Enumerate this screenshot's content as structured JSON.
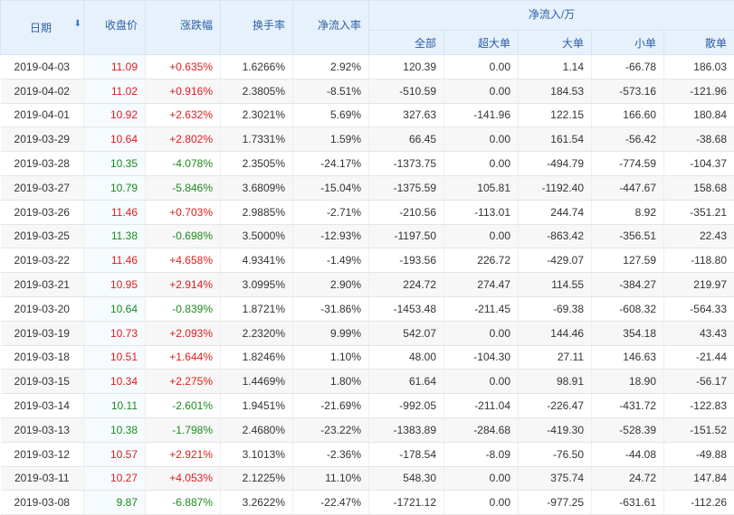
{
  "header": {
    "date": "日期",
    "close": "收盘价",
    "change": "涨跌幅",
    "turnover": "换手率",
    "net_rate": "净流入率",
    "net_group": "净流入/万",
    "all": "全部",
    "super_large": "超大单",
    "large": "大单",
    "small": "小单",
    "retail": "散单"
  },
  "colors": {
    "up": "#e21b1b",
    "down": "#1c8a1c",
    "header_bg": "#e6f1fb",
    "header_text": "#2d5fa6"
  },
  "rows": [
    {
      "date": "2019-04-03",
      "close": "11.09",
      "change": "+0.635%",
      "turnover": "1.6266%",
      "net_rate": "2.92%",
      "all": "120.39",
      "super": "0.00",
      "large": "1.14",
      "small": "-66.78",
      "retail": "186.03",
      "dir": "up"
    },
    {
      "date": "2019-04-02",
      "close": "11.02",
      "change": "+0.916%",
      "turnover": "2.3805%",
      "net_rate": "-8.51%",
      "all": "-510.59",
      "super": "0.00",
      "large": "184.53",
      "small": "-573.16",
      "retail": "-121.96",
      "dir": "up"
    },
    {
      "date": "2019-04-01",
      "close": "10.92",
      "change": "+2.632%",
      "turnover": "2.3021%",
      "net_rate": "5.69%",
      "all": "327.63",
      "super": "-141.96",
      "large": "122.15",
      "small": "166.60",
      "retail": "180.84",
      "dir": "up"
    },
    {
      "date": "2019-03-29",
      "close": "10.64",
      "change": "+2.802%",
      "turnover": "1.7331%",
      "net_rate": "1.59%",
      "all": "66.45",
      "super": "0.00",
      "large": "161.54",
      "small": "-56.42",
      "retail": "-38.68",
      "dir": "up"
    },
    {
      "date": "2019-03-28",
      "close": "10.35",
      "change": "-4.078%",
      "turnover": "2.3505%",
      "net_rate": "-24.17%",
      "all": "-1373.75",
      "super": "0.00",
      "large": "-494.79",
      "small": "-774.59",
      "retail": "-104.37",
      "dir": "down"
    },
    {
      "date": "2019-03-27",
      "close": "10.79",
      "change": "-5.846%",
      "turnover": "3.6809%",
      "net_rate": "-15.04%",
      "all": "-1375.59",
      "super": "105.81",
      "large": "-1192.40",
      "small": "-447.67",
      "retail": "158.68",
      "dir": "down"
    },
    {
      "date": "2019-03-26",
      "close": "11.46",
      "change": "+0.703%",
      "turnover": "2.9885%",
      "net_rate": "-2.71%",
      "all": "-210.56",
      "super": "-113.01",
      "large": "244.74",
      "small": "8.92",
      "retail": "-351.21",
      "dir": "up"
    },
    {
      "date": "2019-03-25",
      "close": "11.38",
      "change": "-0.698%",
      "turnover": "3.5000%",
      "net_rate": "-12.93%",
      "all": "-1197.50",
      "super": "0.00",
      "large": "-863.42",
      "small": "-356.51",
      "retail": "22.43",
      "dir": "down"
    },
    {
      "date": "2019-03-22",
      "close": "11.46",
      "change": "+4.658%",
      "turnover": "4.9341%",
      "net_rate": "-1.49%",
      "all": "-193.56",
      "super": "226.72",
      "large": "-429.07",
      "small": "127.59",
      "retail": "-118.80",
      "dir": "up"
    },
    {
      "date": "2019-03-21",
      "close": "10.95",
      "change": "+2.914%",
      "turnover": "3.0995%",
      "net_rate": "2.90%",
      "all": "224.72",
      "super": "274.47",
      "large": "114.55",
      "small": "-384.27",
      "retail": "219.97",
      "dir": "up"
    },
    {
      "date": "2019-03-20",
      "close": "10.64",
      "change": "-0.839%",
      "turnover": "1.8721%",
      "net_rate": "-31.86%",
      "all": "-1453.48",
      "super": "-211.45",
      "large": "-69.38",
      "small": "-608.32",
      "retail": "-564.33",
      "dir": "down"
    },
    {
      "date": "2019-03-19",
      "close": "10.73",
      "change": "+2.093%",
      "turnover": "2.2320%",
      "net_rate": "9.99%",
      "all": "542.07",
      "super": "0.00",
      "large": "144.46",
      "small": "354.18",
      "retail": "43.43",
      "dir": "up"
    },
    {
      "date": "2019-03-18",
      "close": "10.51",
      "change": "+1.644%",
      "turnover": "1.8246%",
      "net_rate": "1.10%",
      "all": "48.00",
      "super": "-104.30",
      "large": "27.11",
      "small": "146.63",
      "retail": "-21.44",
      "dir": "up"
    },
    {
      "date": "2019-03-15",
      "close": "10.34",
      "change": "+2.275%",
      "turnover": "1.4469%",
      "net_rate": "1.80%",
      "all": "61.64",
      "super": "0.00",
      "large": "98.91",
      "small": "18.90",
      "retail": "-56.17",
      "dir": "up"
    },
    {
      "date": "2019-03-14",
      "close": "10.11",
      "change": "-2.601%",
      "turnover": "1.9451%",
      "net_rate": "-21.69%",
      "all": "-992.05",
      "super": "-211.04",
      "large": "-226.47",
      "small": "-431.72",
      "retail": "-122.83",
      "dir": "down"
    },
    {
      "date": "2019-03-13",
      "close": "10.38",
      "change": "-1.798%",
      "turnover": "2.4680%",
      "net_rate": "-23.22%",
      "all": "-1383.89",
      "super": "-284.68",
      "large": "-419.30",
      "small": "-528.39",
      "retail": "-151.52",
      "dir": "down"
    },
    {
      "date": "2019-03-12",
      "close": "10.57",
      "change": "+2.921%",
      "turnover": "3.1013%",
      "net_rate": "-2.36%",
      "all": "-178.54",
      "super": "-8.09",
      "large": "-76.50",
      "small": "-44.08",
      "retail": "-49.88",
      "dir": "up"
    },
    {
      "date": "2019-03-11",
      "close": "10.27",
      "change": "+4.053%",
      "turnover": "2.1225%",
      "net_rate": "11.10%",
      "all": "548.30",
      "super": "0.00",
      "large": "375.74",
      "small": "24.72",
      "retail": "147.84",
      "dir": "up"
    },
    {
      "date": "2019-03-08",
      "close": "9.87",
      "change": "-6.887%",
      "turnover": "3.2622%",
      "net_rate": "-22.47%",
      "all": "-1721.12",
      "super": "0.00",
      "large": "-977.25",
      "small": "-631.61",
      "retail": "-112.26",
      "dir": "down"
    }
  ]
}
